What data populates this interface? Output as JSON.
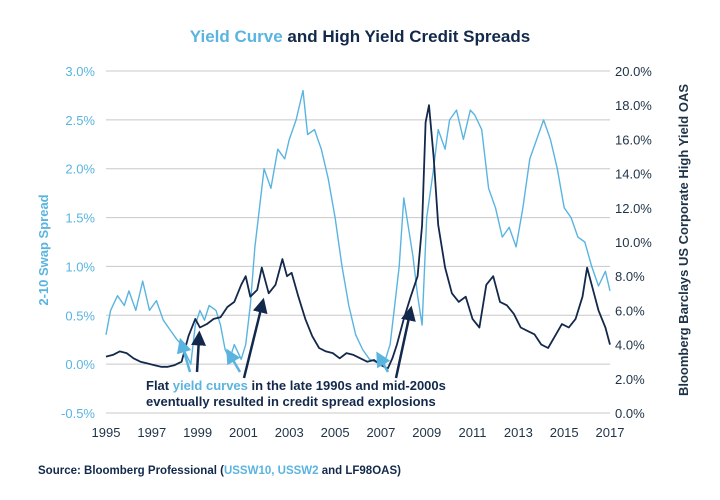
{
  "chart_data": {
    "type": "line",
    "title": {
      "part1": "Yield Curve",
      "part2": " and High Yield Credit Spreads",
      "part1_color": "#5ab4e0",
      "part2_color": "#13294b"
    },
    "x_ticks": [
      "1995",
      "1997",
      "1999",
      "2001",
      "2003",
      "2005",
      "2007",
      "2009",
      "2011",
      "2013",
      "2015",
      "2017"
    ],
    "xlim": [
      1995,
      2017
    ],
    "left_axis": {
      "label": "2-10 Swap Spread",
      "ylim": [
        -0.5,
        3.0
      ],
      "tick_values": [
        -0.5,
        0.0,
        0.5,
        1.0,
        1.5,
        2.0,
        2.5,
        3.0
      ],
      "tick_labels": [
        "-0.5%",
        "0.0%",
        "0.5%",
        "1.0%",
        "1.5%",
        "2.0%",
        "2.5%",
        "3.0%"
      ],
      "color": "#5ab4e0"
    },
    "right_axis": {
      "label": "Bloomberg Barclays US Corporate High Yield OAS",
      "ylim": [
        0,
        20
      ],
      "tick_values": [
        0,
        2,
        4,
        6,
        8,
        10,
        12,
        14,
        16,
        18,
        20
      ],
      "tick_labels": [
        "0.0%",
        "2.0%",
        "4.0%",
        "6.0%",
        "8.0%",
        "10.0%",
        "12.0%",
        "14.0%",
        "16.0%",
        "18.0%",
        "20.0%"
      ],
      "color": "#13294b"
    },
    "series": [
      {
        "name": "2-10 Swap Spread",
        "axis": "left",
        "color": "#5ab4e0",
        "points": [
          [
            1995.0,
            0.3
          ],
          [
            1995.2,
            0.55
          ],
          [
            1995.5,
            0.7
          ],
          [
            1995.8,
            0.6
          ],
          [
            1996.0,
            0.75
          ],
          [
            1996.3,
            0.55
          ],
          [
            1996.6,
            0.85
          ],
          [
            1996.9,
            0.55
          ],
          [
            1997.2,
            0.65
          ],
          [
            1997.5,
            0.45
          ],
          [
            1997.8,
            0.35
          ],
          [
            1998.1,
            0.25
          ],
          [
            1998.3,
            0.2
          ],
          [
            1998.5,
            0.1
          ],
          [
            1998.7,
            0.0
          ],
          [
            1998.9,
            0.4
          ],
          [
            1999.1,
            0.55
          ],
          [
            1999.3,
            0.45
          ],
          [
            1999.5,
            0.6
          ],
          [
            1999.8,
            0.55
          ],
          [
            2000.0,
            0.4
          ],
          [
            2000.2,
            0.15
          ],
          [
            2000.4,
            0.05
          ],
          [
            2000.6,
            0.2
          ],
          [
            2000.9,
            0.05
          ],
          [
            2001.1,
            0.2
          ],
          [
            2001.3,
            0.6
          ],
          [
            2001.5,
            1.2
          ],
          [
            2001.7,
            1.6
          ],
          [
            2001.9,
            2.0
          ],
          [
            2002.2,
            1.8
          ],
          [
            2002.5,
            2.2
          ],
          [
            2002.8,
            2.1
          ],
          [
            2003.0,
            2.3
          ],
          [
            2003.3,
            2.5
          ],
          [
            2003.6,
            2.8
          ],
          [
            2003.8,
            2.35
          ],
          [
            2004.1,
            2.4
          ],
          [
            2004.4,
            2.2
          ],
          [
            2004.7,
            1.9
          ],
          [
            2005.0,
            1.5
          ],
          [
            2005.3,
            1.0
          ],
          [
            2005.6,
            0.6
          ],
          [
            2005.9,
            0.3
          ],
          [
            2006.2,
            0.15
          ],
          [
            2006.5,
            0.05
          ],
          [
            2006.8,
            0.02
          ],
          [
            2007.0,
            0.0
          ],
          [
            2007.2,
            0.05
          ],
          [
            2007.4,
            0.2
          ],
          [
            2007.6,
            0.6
          ],
          [
            2007.8,
            1.0
          ],
          [
            2008.0,
            1.7
          ],
          [
            2008.2,
            1.4
          ],
          [
            2008.4,
            1.1
          ],
          [
            2008.6,
            0.7
          ],
          [
            2008.8,
            0.4
          ],
          [
            2009.0,
            1.5
          ],
          [
            2009.3,
            2.0
          ],
          [
            2009.5,
            2.4
          ],
          [
            2009.8,
            2.2
          ],
          [
            2010.0,
            2.5
          ],
          [
            2010.3,
            2.6
          ],
          [
            2010.6,
            2.3
          ],
          [
            2010.9,
            2.6
          ],
          [
            2011.1,
            2.55
          ],
          [
            2011.4,
            2.4
          ],
          [
            2011.7,
            1.8
          ],
          [
            2012.0,
            1.6
          ],
          [
            2012.3,
            1.3
          ],
          [
            2012.6,
            1.4
          ],
          [
            2012.9,
            1.2
          ],
          [
            2013.2,
            1.6
          ],
          [
            2013.5,
            2.1
          ],
          [
            2013.8,
            2.3
          ],
          [
            2014.1,
            2.5
          ],
          [
            2014.4,
            2.3
          ],
          [
            2014.7,
            2.0
          ],
          [
            2015.0,
            1.6
          ],
          [
            2015.3,
            1.5
          ],
          [
            2015.6,
            1.3
          ],
          [
            2015.9,
            1.25
          ],
          [
            2016.2,
            1.0
          ],
          [
            2016.5,
            0.8
          ],
          [
            2016.8,
            0.95
          ],
          [
            2017.0,
            0.75
          ]
        ]
      },
      {
        "name": "High Yield OAS",
        "axis": "right",
        "color": "#13294b",
        "points": [
          [
            1995.0,
            3.3
          ],
          [
            1995.3,
            3.4
          ],
          [
            1995.6,
            3.6
          ],
          [
            1995.9,
            3.5
          ],
          [
            1996.2,
            3.2
          ],
          [
            1996.5,
            3.0
          ],
          [
            1996.8,
            2.9
          ],
          [
            1997.1,
            2.8
          ],
          [
            1997.4,
            2.7
          ],
          [
            1997.7,
            2.7
          ],
          [
            1998.0,
            2.8
          ],
          [
            1998.3,
            3.0
          ],
          [
            1998.6,
            4.5
          ],
          [
            1998.9,
            5.5
          ],
          [
            1999.1,
            5.0
          ],
          [
            1999.4,
            5.2
          ],
          [
            1999.7,
            5.5
          ],
          [
            2000.0,
            5.6
          ],
          [
            2000.3,
            6.2
          ],
          [
            2000.6,
            6.5
          ],
          [
            2000.9,
            7.5
          ],
          [
            2001.1,
            8.0
          ],
          [
            2001.3,
            6.8
          ],
          [
            2001.6,
            7.2
          ],
          [
            2001.8,
            8.5
          ],
          [
            2002.1,
            7.0
          ],
          [
            2002.4,
            7.5
          ],
          [
            2002.7,
            9.0
          ],
          [
            2002.9,
            8.0
          ],
          [
            2003.1,
            8.2
          ],
          [
            2003.4,
            6.8
          ],
          [
            2003.7,
            5.5
          ],
          [
            2004.0,
            4.5
          ],
          [
            2004.3,
            3.8
          ],
          [
            2004.6,
            3.6
          ],
          [
            2004.9,
            3.5
          ],
          [
            2005.2,
            3.2
          ],
          [
            2005.5,
            3.5
          ],
          [
            2005.8,
            3.4
          ],
          [
            2006.1,
            3.2
          ],
          [
            2006.4,
            3.0
          ],
          [
            2006.7,
            3.1
          ],
          [
            2007.0,
            2.8
          ],
          [
            2007.3,
            2.6
          ],
          [
            2007.5,
            3.2
          ],
          [
            2007.7,
            4.0
          ],
          [
            2008.0,
            5.5
          ],
          [
            2008.3,
            6.8
          ],
          [
            2008.6,
            8.0
          ],
          [
            2008.8,
            11.0
          ],
          [
            2008.95,
            17.0
          ],
          [
            2009.1,
            18.0
          ],
          [
            2009.3,
            15.0
          ],
          [
            2009.5,
            11.0
          ],
          [
            2009.8,
            8.5
          ],
          [
            2010.1,
            7.0
          ],
          [
            2010.4,
            6.5
          ],
          [
            2010.7,
            6.8
          ],
          [
            2011.0,
            5.5
          ],
          [
            2011.3,
            5.0
          ],
          [
            2011.6,
            7.5
          ],
          [
            2011.9,
            8.0
          ],
          [
            2012.2,
            6.5
          ],
          [
            2012.5,
            6.3
          ],
          [
            2012.8,
            5.8
          ],
          [
            2013.1,
            5.0
          ],
          [
            2013.4,
            4.8
          ],
          [
            2013.7,
            4.6
          ],
          [
            2014.0,
            4.0
          ],
          [
            2014.3,
            3.8
          ],
          [
            2014.6,
            4.5
          ],
          [
            2014.9,
            5.2
          ],
          [
            2015.2,
            5.0
          ],
          [
            2015.5,
            5.5
          ],
          [
            2015.8,
            6.8
          ],
          [
            2016.0,
            8.5
          ],
          [
            2016.2,
            7.5
          ],
          [
            2016.5,
            6.0
          ],
          [
            2016.8,
            5.0
          ],
          [
            2017.0,
            4.0
          ]
        ]
      }
    ],
    "annotation": {
      "text_before": "Flat ",
      "text_highlight": "yield curves",
      "text_after": " in the late 1990s and mid-2000s",
      "line2": "eventually resulted in credit spread explosions"
    }
  },
  "source": {
    "prefix": "Source: Bloomberg Professional (",
    "links": "USSW10, USSW2",
    "suffix": " and LF98OAS)"
  }
}
